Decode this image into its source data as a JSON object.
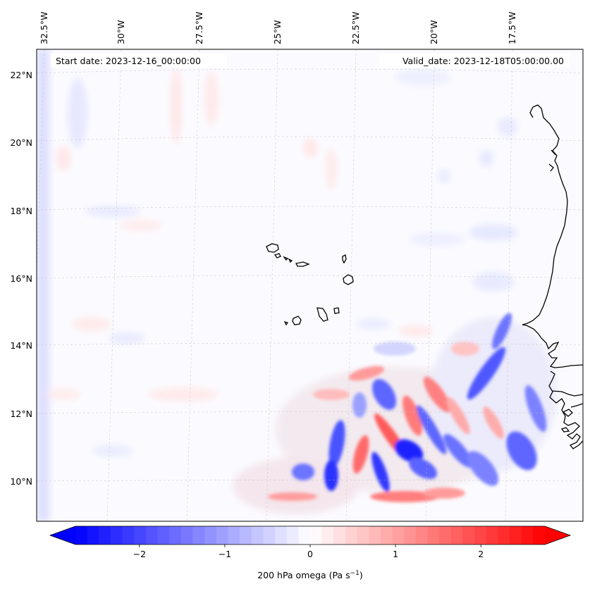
{
  "header": {
    "start_date": "Start date: 2023-12-16_00:00:00",
    "valid_date": "Valid_date: 2023-12-18T05:00:00.00"
  },
  "map": {
    "lon_labels": [
      "32.5°W",
      "30°W",
      "27.5°W",
      "25°W",
      "22.5°W",
      "20°W",
      "17.5°W"
    ],
    "lat_labels": [
      "22°N",
      "20°N",
      "18°N",
      "16°N",
      "14°N",
      "12°N",
      "10°N"
    ],
    "gridlines": true,
    "land_features": [
      "Cape Verde islands",
      "West African coastline"
    ]
  },
  "colorbar": {
    "label_text": "200 hPa omega (Pa s",
    "label_exp": "−1",
    "label_close": ")",
    "ticks": [
      {
        "value": -2,
        "text": "−2"
      },
      {
        "value": -1,
        "text": "−1"
      },
      {
        "value": 0,
        "text": "0"
      },
      {
        "value": 1,
        "text": "1"
      },
      {
        "value": 2,
        "text": "2"
      }
    ],
    "range": [
      -2.75,
      2.75
    ],
    "colormap": "bwr",
    "extend": "both",
    "colors": {
      "min": "#0000ff",
      "mid": "#ffffff",
      "max": "#ff0000"
    }
  }
}
